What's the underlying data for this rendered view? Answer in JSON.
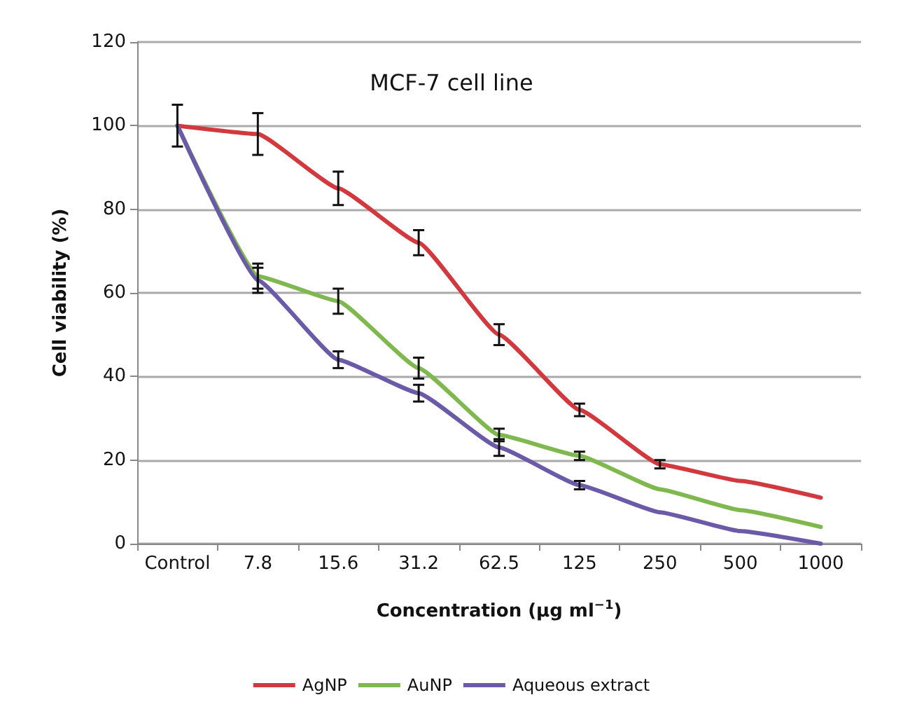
{
  "chart_data": {
    "type": "line",
    "title": "MCF-7 cell line",
    "xlabel": "Concentration (μg ml$^{−1}$)",
    "ylabel": "Cell viability (%)",
    "categories": [
      "Control",
      "7.8",
      "15.6",
      "31.2",
      "62.5",
      "125",
      "250",
      "500",
      "1000"
    ],
    "series": [
      {
        "name": "AgNP",
        "color": "#d2393f",
        "values": [
          100,
          98,
          85,
          72,
          50,
          32,
          19,
          15,
          11
        ],
        "errors": [
          5,
          5,
          4,
          3,
          2.5,
          1.5,
          1,
          null,
          null
        ]
      },
      {
        "name": "AuNP",
        "color": "#80b850",
        "values": [
          100,
          64,
          58,
          42,
          26,
          21,
          13,
          8,
          4
        ],
        "errors": [
          null,
          3,
          3,
          2.5,
          1.5,
          1,
          null,
          null,
          null
        ]
      },
      {
        "name": "Aqueous extract",
        "color": "#6a5aa8",
        "values": [
          100,
          63,
          44,
          36,
          23,
          14,
          7.5,
          3,
          0
        ],
        "errors": [
          null,
          3,
          2,
          2,
          2,
          1,
          null,
          null,
          null
        ]
      }
    ],
    "ylim": [
      0,
      120
    ],
    "yticks": [
      0,
      20,
      40,
      60,
      80,
      100,
      120
    ],
    "grid": "y",
    "legend": "bottom",
    "marker": "none",
    "line_style": "solid"
  }
}
